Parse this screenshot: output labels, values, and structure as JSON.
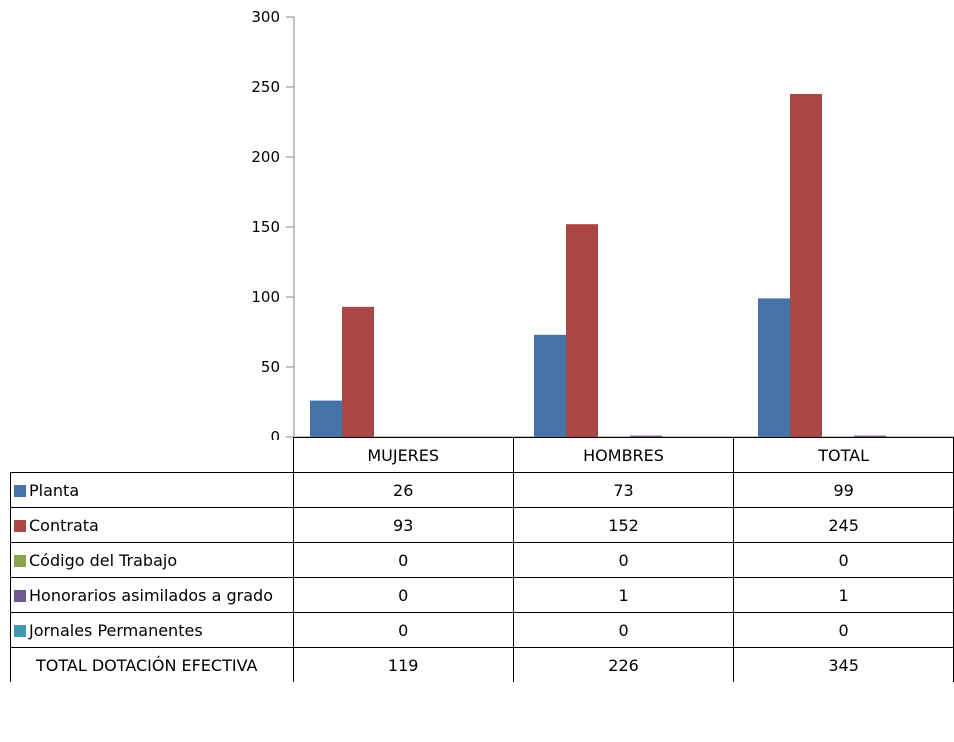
{
  "chart_data": {
    "type": "bar",
    "categories": [
      "MUJERES",
      "HOMBRES",
      "TOTAL"
    ],
    "series": [
      {
        "name": "Planta",
        "color": "#4572A7",
        "values": [
          26,
          73,
          99
        ]
      },
      {
        "name": "Contrata",
        "color": "#AA4643",
        "values": [
          93,
          152,
          245
        ]
      },
      {
        "name": "Código del Trabajo",
        "color": "#89A54E",
        "values": [
          0,
          0,
          0
        ]
      },
      {
        "name": "Honorarios asimilados a grado",
        "color": "#71588F",
        "values": [
          0,
          1,
          1
        ]
      },
      {
        "name": "Jornales Permanentes",
        "color": "#4198AF",
        "values": [
          0,
          0,
          0
        ]
      }
    ],
    "ylim": [
      0,
      300
    ],
    "yticks": [
      0,
      50,
      100,
      150,
      200,
      250,
      300
    ],
    "legend": "data-table",
    "grid": false,
    "total_row": {
      "label": "TOTAL DOTACIÓN EFECTIVA",
      "values": [
        119,
        226,
        345
      ]
    }
  }
}
